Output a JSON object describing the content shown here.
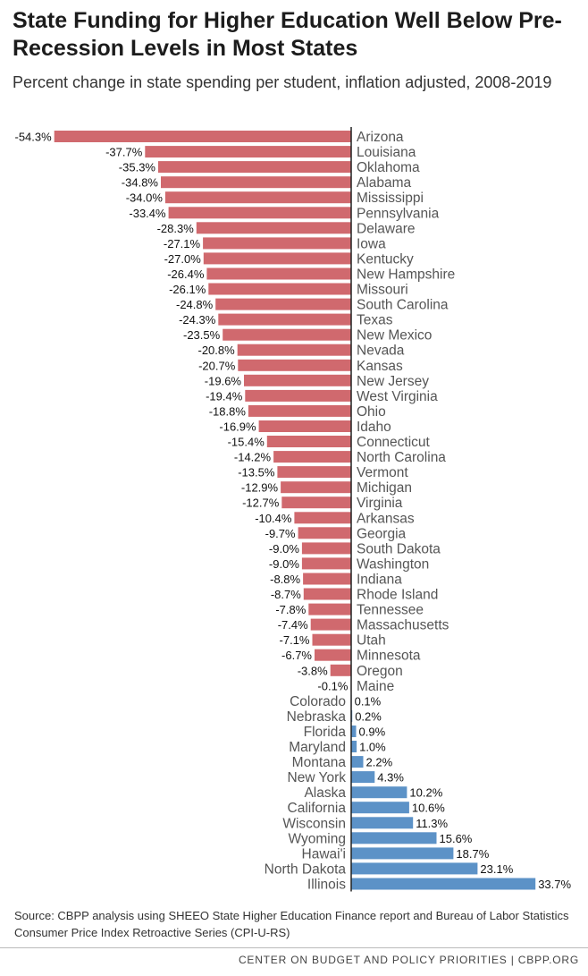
{
  "header": {
    "title": "State Funding for Higher Education Well Below Pre-Recession Levels in Most States",
    "subtitle": "Percent change in state spending per student, inflation adjusted, 2008-2019"
  },
  "colors": {
    "negative": "#d0696e",
    "positive": "#5c92c7",
    "axis": "#222222",
    "label": "#555555"
  },
  "chart_data": {
    "type": "bar",
    "orientation": "horizontal",
    "unit": "%",
    "xlim": [
      -54.3,
      33.7
    ],
    "categories": [
      "Arizona",
      "Louisiana",
      "Oklahoma",
      "Alabama",
      "Mississippi",
      "Pennsylvania",
      "Delaware",
      "Iowa",
      "Kentucky",
      "New Hampshire",
      "Missouri",
      "South Carolina",
      "Texas",
      "New Mexico",
      "Nevada",
      "Kansas",
      "New Jersey",
      "West Virginia",
      "Ohio",
      "Idaho",
      "Connecticut",
      "North Carolina",
      "Vermont",
      "Michigan",
      "Virginia",
      "Arkansas",
      "Georgia",
      "South Dakota",
      "Washington",
      "Indiana",
      "Rhode Island",
      "Tennessee",
      "Massachusetts",
      "Utah",
      "Minnesota",
      "Oregon",
      "Maine",
      "Colorado",
      "Nebraska",
      "Florida",
      "Maryland",
      "Montana",
      "New York",
      "Alaska",
      "California",
      "Wisconsin",
      "Wyoming",
      "Hawai'i",
      "North Dakota",
      "Illinois"
    ],
    "values": [
      -54.3,
      -37.7,
      -35.3,
      -34.8,
      -34.0,
      -33.4,
      -28.3,
      -27.1,
      -27.0,
      -26.4,
      -26.1,
      -24.8,
      -24.3,
      -23.5,
      -20.8,
      -20.7,
      -19.6,
      -19.4,
      -18.8,
      -16.9,
      -15.4,
      -14.2,
      -13.5,
      -12.9,
      -12.7,
      -10.4,
      -9.7,
      -9.0,
      -9.0,
      -8.8,
      -8.7,
      -7.8,
      -7.4,
      -7.1,
      -6.7,
      -3.8,
      -0.1,
      0.1,
      0.2,
      0.9,
      1.0,
      2.2,
      4.3,
      10.2,
      10.6,
      11.3,
      15.6,
      18.7,
      23.1,
      33.7
    ],
    "labels": [
      "-54.3%",
      "-37.7%",
      "-35.3%",
      "-34.8%",
      "-34.0%",
      "-33.4%",
      "-28.3%",
      "-27.1%",
      "-27.0%",
      "-26.4%",
      "-26.1%",
      "-24.8%",
      "-24.3%",
      "-23.5%",
      "-20.8%",
      "-20.7%",
      "-19.6%",
      "-19.4%",
      "-18.8%",
      "-16.9%",
      "-15.4%",
      "-14.2%",
      "-13.5%",
      "-12.9%",
      "-12.7%",
      "-10.4%",
      "-9.7%",
      "-9.0%",
      "-9.0%",
      "-8.8%",
      "-8.7%",
      "-7.8%",
      "-7.4%",
      "-7.1%",
      "-6.7%",
      "-3.8%",
      "-0.1%",
      "0.1%",
      "0.2%",
      "0.9%",
      "1.0%",
      "2.2%",
      "4.3%",
      "10.2%",
      "10.6%",
      "11.3%",
      "15.6%",
      "18.7%",
      "23.1%",
      "33.7%"
    ]
  },
  "source": "Source: CBPP analysis using SHEEO State Higher Education Finance report and Bureau of Labor Statistics Consumer Price Index Retroactive Series (CPI-U-RS)",
  "footer": "CENTER ON BUDGET AND POLICY PRIORITIES | CBPP.ORG"
}
